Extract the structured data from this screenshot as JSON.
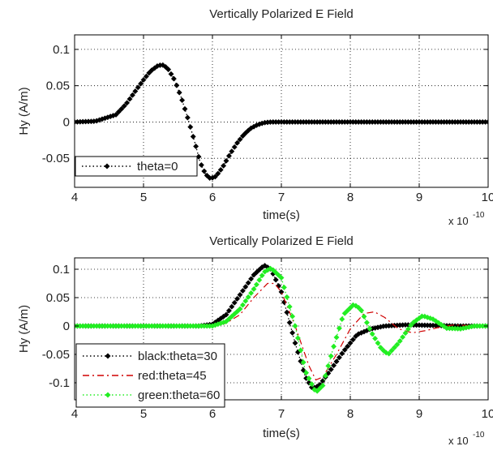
{
  "chart_data": [
    {
      "type": "line",
      "title": "Vertically Polarized E Field",
      "xlabel": "time(s)",
      "ylabel": "Hy (A/m)",
      "x_multiplier": "x 10",
      "x_exponent": "-10",
      "xlim": [
        4,
        10
      ],
      "ylim": [
        -0.09,
        0.12
      ],
      "xticks": [
        4,
        5,
        6,
        7,
        8,
        9,
        10
      ],
      "yticks": [
        -0.05,
        0,
        0.05,
        0.1
      ],
      "xtick_labels": [
        "4",
        "5",
        "6",
        "7",
        "8",
        "9",
        "10"
      ],
      "ytick_labels": [
        "-0.05",
        "0",
        "0.05",
        "0.1"
      ],
      "grid": true,
      "legend_position": "bottom-left",
      "series": [
        {
          "name": "theta=0",
          "color": "#000000",
          "line_style": "dotted",
          "marker": "diamond",
          "x": [
            4.0,
            4.3,
            4.6,
            4.75,
            4.9,
            5.0,
            5.1,
            5.2,
            5.27,
            5.35,
            5.45,
            5.55,
            5.65,
            5.75,
            5.82,
            5.9,
            5.97,
            6.05,
            6.15,
            6.25,
            6.35,
            6.45,
            6.55,
            6.65,
            6.75,
            6.85,
            7.0,
            7.5,
            8.0,
            8.5,
            9.0,
            9.5,
            10.0
          ],
          "y": [
            0.0,
            0.001,
            0.01,
            0.025,
            0.045,
            0.058,
            0.07,
            0.077,
            0.079,
            0.074,
            0.058,
            0.033,
            0.003,
            -0.03,
            -0.055,
            -0.072,
            -0.078,
            -0.075,
            -0.062,
            -0.045,
            -0.03,
            -0.018,
            -0.009,
            -0.004,
            -0.001,
            0.0,
            0.0,
            0.0,
            0.0,
            0.0,
            0.0,
            0.0,
            0.0
          ]
        }
      ]
    },
    {
      "type": "line",
      "title": "Vertically Polarized E Field",
      "xlabel": "time(s)",
      "ylabel": "Hy (A/m)",
      "x_multiplier": "x 10",
      "x_exponent": "-10",
      "xlim": [
        4,
        10
      ],
      "ylim": [
        -0.13,
        0.12
      ],
      "xticks": [
        4,
        5,
        6,
        7,
        8,
        9,
        10
      ],
      "yticks": [
        -0.1,
        -0.05,
        0,
        0.05,
        0.1
      ],
      "xtick_labels": [
        "4",
        "5",
        "6",
        "7",
        "8",
        "9",
        "10"
      ],
      "ytick_labels": [
        "-0.1",
        "-0.05",
        "0",
        "0.05",
        "0.1"
      ],
      "grid": true,
      "legend_position": "bottom-left",
      "series": [
        {
          "name": "black:theta=30",
          "color": "#000000",
          "line_style": "dotted",
          "marker": "diamond",
          "x": [
            4.0,
            5.0,
            5.8,
            6.0,
            6.2,
            6.4,
            6.6,
            6.75,
            6.85,
            7.0,
            7.2,
            7.35,
            7.45,
            7.55,
            7.7,
            7.9,
            8.1,
            8.3,
            8.5,
            8.8,
            9.2,
            9.6,
            10.0
          ],
          "y": [
            0.0,
            0.0,
            0.0,
            0.003,
            0.02,
            0.055,
            0.09,
            0.107,
            0.1,
            0.06,
            -0.03,
            -0.09,
            -0.11,
            -0.105,
            -0.08,
            -0.045,
            -0.015,
            -0.005,
            0.0,
            0.002,
            0.001,
            0.0,
            0.0
          ]
        },
        {
          "name": "red:theta=45",
          "color": "#d00000",
          "line_style": "dashdot",
          "marker": "none",
          "x": [
            4.0,
            5.0,
            6.0,
            6.2,
            6.4,
            6.6,
            6.8,
            6.9,
            7.0,
            7.2,
            7.4,
            7.5,
            7.6,
            7.8,
            8.0,
            8.2,
            8.35,
            8.5,
            8.7,
            8.9,
            9.1,
            9.3,
            9.5,
            9.7,
            10.0
          ],
          "y": [
            0.0,
            0.0,
            0.0,
            0.005,
            0.02,
            0.05,
            0.075,
            0.075,
            0.06,
            0.0,
            -0.07,
            -0.095,
            -0.09,
            -0.05,
            -0.005,
            0.022,
            0.025,
            0.015,
            -0.005,
            -0.012,
            -0.008,
            -0.002,
            0.002,
            0.001,
            0.0
          ]
        },
        {
          "name": "green:theta=60",
          "color": "#22ee22",
          "line_style": "dotted",
          "marker": "diamond",
          "x": [
            4.0,
            5.0,
            6.0,
            6.2,
            6.4,
            6.6,
            6.75,
            6.85,
            7.0,
            7.2,
            7.35,
            7.5,
            7.6,
            7.75,
            7.9,
            8.05,
            8.15,
            8.3,
            8.45,
            8.55,
            8.7,
            8.9,
            9.05,
            9.2,
            9.4,
            9.6,
            9.8,
            10.0
          ],
          "y": [
            0.0,
            0.0,
            0.0,
            0.008,
            0.03,
            0.065,
            0.095,
            0.102,
            0.085,
            0.0,
            -0.08,
            -0.117,
            -0.105,
            -0.04,
            0.02,
            0.038,
            0.03,
            -0.01,
            -0.04,
            -0.05,
            -0.03,
            0.005,
            0.018,
            0.012,
            -0.004,
            -0.005,
            0.0,
            0.0
          ]
        }
      ]
    }
  ]
}
